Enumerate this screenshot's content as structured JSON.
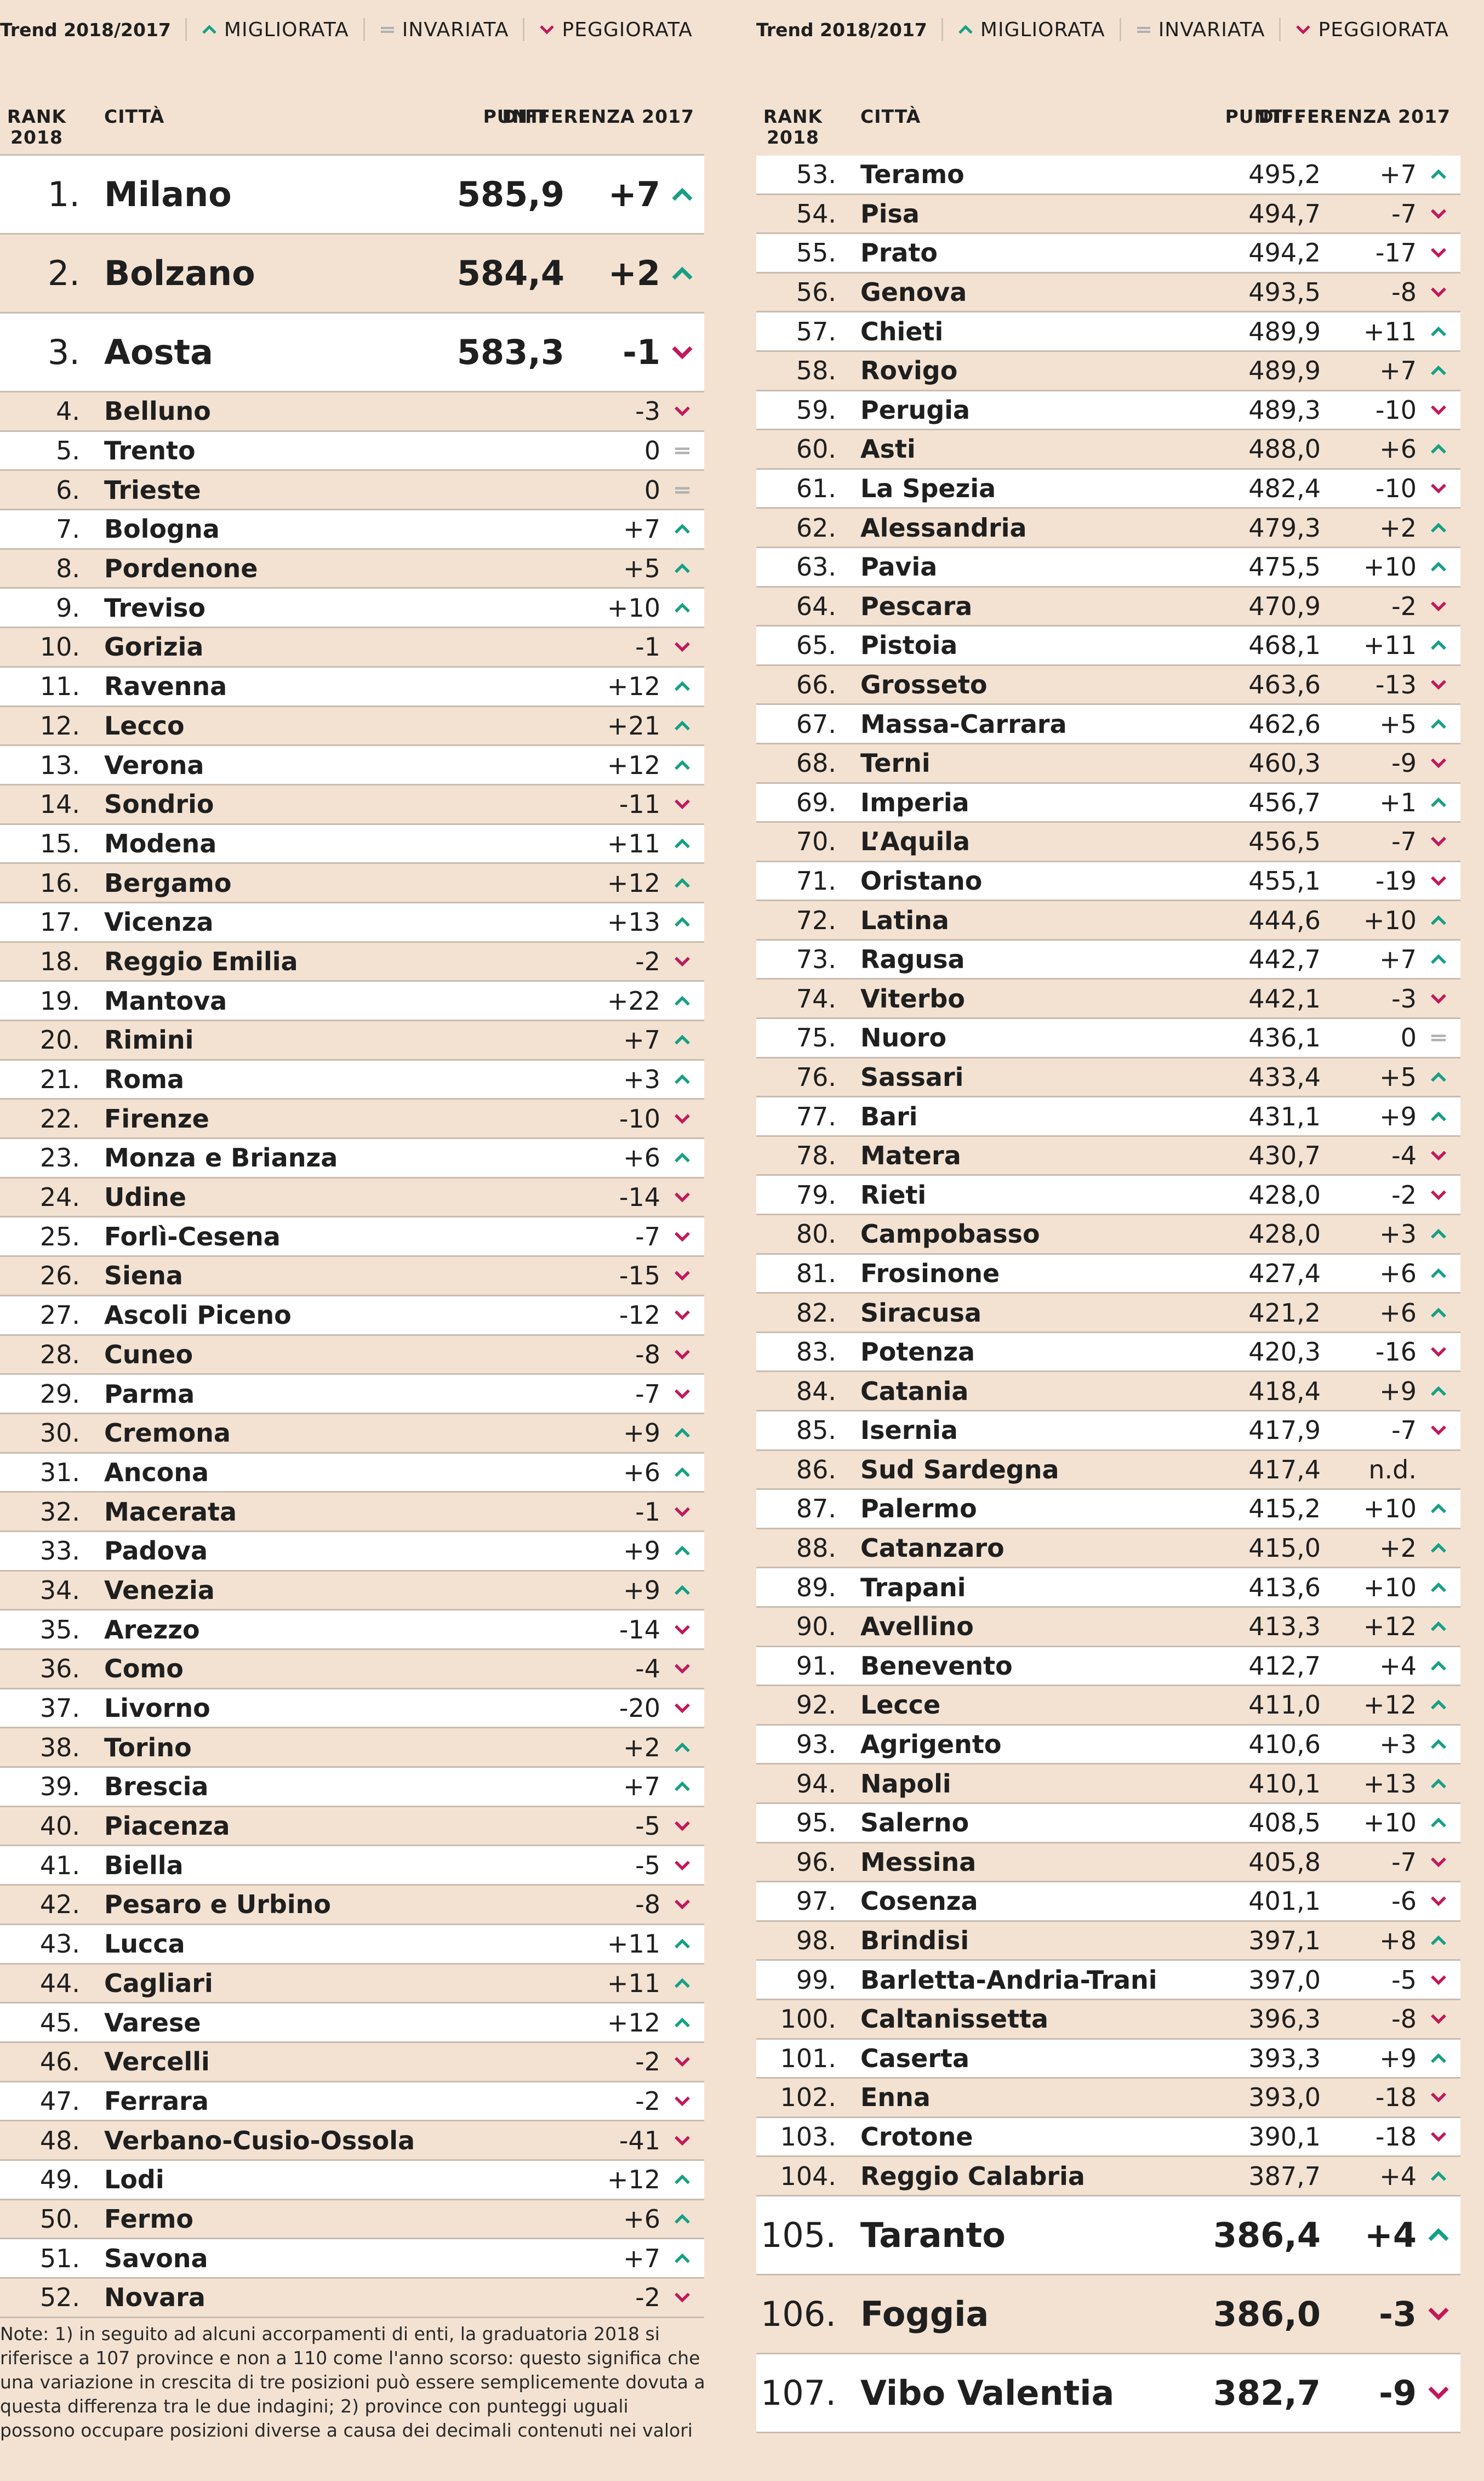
{
  "legend": {
    "title": "Trend 2018/2017",
    "improved": "MIGLIORATA",
    "unchanged": "INVARIATA",
    "worsened": "PEGGIORATA"
  },
  "headers": {
    "rank": "RANK 2018",
    "city": "CITTÀ",
    "punti": "PUNTI",
    "punti_right": "PUNTI .",
    "diff": "DIFFERENZA 2017"
  },
  "colors": {
    "up": "#16a085",
    "down": "#c2185b",
    "eq": "#b0b0b0",
    "beige": "#f3e2d2",
    "white": "#ffffff"
  },
  "left_rows": [
    {
      "rank": "1.",
      "city": "Milano",
      "punti": "585,9",
      "diff": "+7",
      "trend": "up"
    },
    {
      "rank": "2.",
      "city": "Bolzano",
      "punti": "584,4",
      "diff": "+2",
      "trend": "up"
    },
    {
      "rank": "3.",
      "city": "Aosta",
      "punti": "583,3",
      "diff": "-1",
      "trend": "down"
    },
    {
      "rank": "4.",
      "city": "Belluno",
      "punti": "",
      "diff": "-3",
      "trend": "down"
    },
    {
      "rank": "5.",
      "city": "Trento",
      "punti": "",
      "diff": "0",
      "trend": "eq"
    },
    {
      "rank": "6.",
      "city": "Trieste",
      "punti": "",
      "diff": "0",
      "trend": "eq"
    },
    {
      "rank": "7.",
      "city": "Bologna",
      "punti": "",
      "diff": "+7",
      "trend": "up"
    },
    {
      "rank": "8.",
      "city": "Pordenone",
      "punti": "",
      "diff": "+5",
      "trend": "up"
    },
    {
      "rank": "9.",
      "city": "Treviso",
      "punti": "",
      "diff": "+10",
      "trend": "up"
    },
    {
      "rank": "10.",
      "city": "Gorizia",
      "punti": "",
      "diff": "-1",
      "trend": "down"
    },
    {
      "rank": "11.",
      "city": "Ravenna",
      "punti": "",
      "diff": "+12",
      "trend": "up"
    },
    {
      "rank": "12.",
      "city": "Lecco",
      "punti": "",
      "diff": "+21",
      "trend": "up"
    },
    {
      "rank": "13.",
      "city": "Verona",
      "punti": "",
      "diff": "+12",
      "trend": "up"
    },
    {
      "rank": "14.",
      "city": "Sondrio",
      "punti": "",
      "diff": "-11",
      "trend": "down"
    },
    {
      "rank": "15.",
      "city": "Modena",
      "punti": "",
      "diff": "+11",
      "trend": "up"
    },
    {
      "rank": "16.",
      "city": "Bergamo",
      "punti": "",
      "diff": "+12",
      "trend": "up"
    },
    {
      "rank": "17.",
      "city": "Vicenza",
      "punti": "",
      "diff": "+13",
      "trend": "up"
    },
    {
      "rank": "18.",
      "city": "Reggio Emilia",
      "punti": "",
      "diff": "-2",
      "trend": "down"
    },
    {
      "rank": "19.",
      "city": "Mantova",
      "punti": "",
      "diff": "+22",
      "trend": "up"
    },
    {
      "rank": "20.",
      "city": "Rimini",
      "punti": "",
      "diff": "+7",
      "trend": "up"
    },
    {
      "rank": "21.",
      "city": "Roma",
      "punti": "",
      "diff": "+3",
      "trend": "up"
    },
    {
      "rank": "22.",
      "city": "Firenze",
      "punti": "",
      "diff": "-10",
      "trend": "down"
    },
    {
      "rank": "23.",
      "city": "Monza e Brianza",
      "punti": "",
      "diff": "+6",
      "trend": "up"
    },
    {
      "rank": "24.",
      "city": "Udine",
      "punti": "",
      "diff": "-14",
      "trend": "down"
    },
    {
      "rank": "25.",
      "city": "Forlì-Cesena",
      "punti": "",
      "diff": "-7",
      "trend": "down"
    },
    {
      "rank": "26.",
      "city": "Siena",
      "punti": "",
      "diff": "-15",
      "trend": "down"
    },
    {
      "rank": "27.",
      "city": "Ascoli Piceno",
      "punti": "",
      "diff": "-12",
      "trend": "down"
    },
    {
      "rank": "28.",
      "city": "Cuneo",
      "punti": "",
      "diff": "-8",
      "trend": "down"
    },
    {
      "rank": "29.",
      "city": "Parma",
      "punti": "",
      "diff": "-7",
      "trend": "down"
    },
    {
      "rank": "30.",
      "city": "Cremona",
      "punti": "",
      "diff": "+9",
      "trend": "up"
    },
    {
      "rank": "31.",
      "city": "Ancona",
      "punti": "",
      "diff": "+6",
      "trend": "up"
    },
    {
      "rank": "32.",
      "city": "Macerata",
      "punti": "",
      "diff": "-1",
      "trend": "down"
    },
    {
      "rank": "33.",
      "city": "Padova",
      "punti": "",
      "diff": "+9",
      "trend": "up"
    },
    {
      "rank": "34.",
      "city": "Venezia",
      "punti": "",
      "diff": "+9",
      "trend": "up"
    },
    {
      "rank": "35.",
      "city": "Arezzo",
      "punti": "",
      "diff": "-14",
      "trend": "down"
    },
    {
      "rank": "36.",
      "city": "Como",
      "punti": "",
      "diff": "-4",
      "trend": "down"
    },
    {
      "rank": "37.",
      "city": "Livorno",
      "punti": "",
      "diff": "-20",
      "trend": "down"
    },
    {
      "rank": "38.",
      "city": "Torino",
      "punti": "",
      "diff": "+2",
      "trend": "up"
    },
    {
      "rank": "39.",
      "city": "Brescia",
      "punti": "",
      "diff": "+7",
      "trend": "up"
    },
    {
      "rank": "40.",
      "city": "Piacenza",
      "punti": "",
      "diff": "-5",
      "trend": "down"
    },
    {
      "rank": "41.",
      "city": "Biella",
      "punti": "",
      "diff": "-5",
      "trend": "down"
    },
    {
      "rank": "42.",
      "city": "Pesaro e Urbino",
      "punti": "",
      "diff": "-8",
      "trend": "down"
    },
    {
      "rank": "43.",
      "city": "Lucca",
      "punti": "",
      "diff": "+11",
      "trend": "up"
    },
    {
      "rank": "44.",
      "city": "Cagliari",
      "punti": "",
      "diff": "+11",
      "trend": "up"
    },
    {
      "rank": "45.",
      "city": "Varese",
      "punti": "",
      "diff": "+12",
      "trend": "up"
    },
    {
      "rank": "46.",
      "city": "Vercelli",
      "punti": "",
      "diff": "-2",
      "trend": "down"
    },
    {
      "rank": "47.",
      "city": "Ferrara",
      "punti": "",
      "diff": "-2",
      "trend": "down"
    },
    {
      "rank": "48.",
      "city": "Verbano-Cusio-Ossola",
      "punti": "",
      "diff": "-41",
      "trend": "down"
    },
    {
      "rank": "49.",
      "city": "Lodi",
      "punti": "",
      "diff": "+12",
      "trend": "up"
    },
    {
      "rank": "50.",
      "city": "Fermo",
      "punti": "",
      "diff": "+6",
      "trend": "up"
    },
    {
      "rank": "51.",
      "city": "Savona",
      "punti": "",
      "diff": "+7",
      "trend": "up"
    },
    {
      "rank": "52.",
      "city": "Novara",
      "punti": "",
      "diff": "-2",
      "trend": "down"
    }
  ],
  "right_rows": [
    {
      "rank": "53.",
      "city": "Teramo",
      "punti": "495,2",
      "diff": "+7",
      "trend": "up"
    },
    {
      "rank": "54.",
      "city": "Pisa",
      "punti": "494,7",
      "diff": "-7",
      "trend": "down"
    },
    {
      "rank": "55.",
      "city": "Prato",
      "punti": "494,2",
      "diff": "-17",
      "trend": "down"
    },
    {
      "rank": "56.",
      "city": "Genova",
      "punti": "493,5",
      "diff": "-8",
      "trend": "down"
    },
    {
      "rank": "57.",
      "city": "Chieti",
      "punti": "489,9",
      "diff": "+11",
      "trend": "up"
    },
    {
      "rank": "58.",
      "city": "Rovigo",
      "punti": "489,9",
      "diff": "+7",
      "trend": "up"
    },
    {
      "rank": "59.",
      "city": "Perugia",
      "punti": "489,3",
      "diff": "-10",
      "trend": "down"
    },
    {
      "rank": "60.",
      "city": "Asti",
      "punti": "488,0",
      "diff": "+6",
      "trend": "up"
    },
    {
      "rank": "61.",
      "city": "La Spezia",
      "punti": "482,4",
      "diff": "-10",
      "trend": "down"
    },
    {
      "rank": "62.",
      "city": "Alessandria",
      "punti": "479,3",
      "diff": "+2",
      "trend": "up"
    },
    {
      "rank": "63.",
      "city": "Pavia",
      "punti": "475,5",
      "diff": "+10",
      "trend": "up"
    },
    {
      "rank": "64.",
      "city": "Pescara",
      "punti": "470,9",
      "diff": "-2",
      "trend": "down"
    },
    {
      "rank": "65.",
      "city": "Pistoia",
      "punti": "468,1",
      "diff": "+11",
      "trend": "up"
    },
    {
      "rank": "66.",
      "city": "Grosseto",
      "punti": "463,6",
      "diff": "-13",
      "trend": "down"
    },
    {
      "rank": "67.",
      "city": "Massa-Carrara",
      "punti": "462,6",
      "diff": "+5",
      "trend": "up"
    },
    {
      "rank": "68.",
      "city": "Terni",
      "punti": "460,3",
      "diff": "-9",
      "trend": "down"
    },
    {
      "rank": "69.",
      "city": "Imperia",
      "punti": "456,7",
      "diff": "+1",
      "trend": "up"
    },
    {
      "rank": "70.",
      "city": "L’Aquila",
      "punti": "456,5",
      "diff": "-7",
      "trend": "down"
    },
    {
      "rank": "71.",
      "city": "Oristano",
      "punti": "455,1",
      "diff": "-19",
      "trend": "down"
    },
    {
      "rank": "72.",
      "city": "Latina",
      "punti": "444,6",
      "diff": "+10",
      "trend": "up"
    },
    {
      "rank": "73.",
      "city": "Ragusa",
      "punti": "442,7",
      "diff": "+7",
      "trend": "up"
    },
    {
      "rank": "74.",
      "city": "Viterbo",
      "punti": "442,1",
      "diff": "-3",
      "trend": "down"
    },
    {
      "rank": "75.",
      "city": "Nuoro",
      "punti": "436,1",
      "diff": "0",
      "trend": "eq"
    },
    {
      "rank": "76.",
      "city": "Sassari",
      "punti": "433,4",
      "diff": "+5",
      "trend": "up"
    },
    {
      "rank": "77.",
      "city": "Bari",
      "punti": "431,1",
      "diff": "+9",
      "trend": "up"
    },
    {
      "rank": "78.",
      "city": "Matera",
      "punti": "430,7",
      "diff": "-4",
      "trend": "down"
    },
    {
      "rank": "79.",
      "city": "Rieti",
      "punti": "428,0",
      "diff": "-2",
      "trend": "down"
    },
    {
      "rank": "80.",
      "city": "Campobasso",
      "punti": "428,0",
      "diff": "+3",
      "trend": "up"
    },
    {
      "rank": "81.",
      "city": "Frosinone",
      "punti": "427,4",
      "diff": "+6",
      "trend": "up"
    },
    {
      "rank": "82.",
      "city": "Siracusa",
      "punti": "421,2",
      "diff": "+6",
      "trend": "up"
    },
    {
      "rank": "83.",
      "city": "Potenza",
      "punti": "420,3",
      "diff": "-16",
      "trend": "down"
    },
    {
      "rank": "84.",
      "city": "Catania",
      "punti": "418,4",
      "diff": "+9",
      "trend": "up"
    },
    {
      "rank": "85.",
      "city": "Isernia",
      "punti": "417,9",
      "diff": "-7",
      "trend": "down"
    },
    {
      "rank": "86.",
      "city": "Sud Sardegna",
      "punti": "417,4",
      "diff": "n.d.",
      "trend": "none"
    },
    {
      "rank": "87.",
      "city": "Palermo",
      "punti": "415,2",
      "diff": "+10",
      "trend": "up"
    },
    {
      "rank": "88.",
      "city": "Catanzaro",
      "punti": "415,0",
      "diff": "+2",
      "trend": "up"
    },
    {
      "rank": "89.",
      "city": "Trapani",
      "punti": "413,6",
      "diff": "+10",
      "trend": "up"
    },
    {
      "rank": "90.",
      "city": "Avellino",
      "punti": "413,3",
      "diff": "+12",
      "trend": "up"
    },
    {
      "rank": "91.",
      "city": "Benevento",
      "punti": "412,7",
      "diff": "+4",
      "trend": "up"
    },
    {
      "rank": "92.",
      "city": "Lecce",
      "punti": "411,0",
      "diff": "+12",
      "trend": "up"
    },
    {
      "rank": "93.",
      "city": "Agrigento",
      "punti": "410,6",
      "diff": "+3",
      "trend": "up"
    },
    {
      "rank": "94.",
      "city": "Napoli",
      "punti": "410,1",
      "diff": "+13",
      "trend": "up"
    },
    {
      "rank": "95.",
      "city": "Salerno",
      "punti": "408,5",
      "diff": "+10",
      "trend": "up"
    },
    {
      "rank": "96.",
      "city": "Messina",
      "punti": "405,8",
      "diff": "-7",
      "trend": "down"
    },
    {
      "rank": "97.",
      "city": "Cosenza",
      "punti": "401,1",
      "diff": "-6",
      "trend": "down"
    },
    {
      "rank": "98.",
      "city": "Brindisi",
      "punti": "397,1",
      "diff": "+8",
      "trend": "up"
    },
    {
      "rank": "99.",
      "city": "Barletta-Andria-Trani",
      "punti": "397,0",
      "diff": "-5",
      "trend": "down"
    },
    {
      "rank": "100.",
      "city": "Caltanissetta",
      "punti": "396,3",
      "diff": "-8",
      "trend": "down"
    },
    {
      "rank": "101.",
      "city": "Caserta",
      "punti": "393,3",
      "diff": "+9",
      "trend": "up"
    },
    {
      "rank": "102.",
      "city": "Enna",
      "punti": "393,0",
      "diff": "-18",
      "trend": "down"
    },
    {
      "rank": "103.",
      "city": "Crotone",
      "punti": "390,1",
      "diff": "-18",
      "trend": "down"
    },
    {
      "rank": "104.",
      "city": "Reggio Calabria",
      "punti": "387,7",
      "diff": "+4",
      "trend": "up"
    },
    {
      "rank": "105.",
      "city": "Taranto",
      "punti": "386,4",
      "diff": "+4",
      "trend": "up"
    },
    {
      "rank": "106.",
      "city": "Foggia",
      "punti": "386,0",
      "diff": "-3",
      "trend": "down"
    },
    {
      "rank": "107.",
      "city": "Vibo Valentia",
      "punti": "382,7",
      "diff": "-9",
      "trend": "down"
    }
  ],
  "notes": "Note: 1) in seguito ad alcuni accorpamenti di enti, la graduatoria 2018 si riferisce a 107 province e non a 110 come l'anno scorso: questo significa che una variazione in crescita di tre posizioni può essere semplicemente dovuta a questa differenza tra le due indagini; 2) province con punteggi uguali possono occupare posizioni diverse a causa dei decimali contenuti nei valori"
}
